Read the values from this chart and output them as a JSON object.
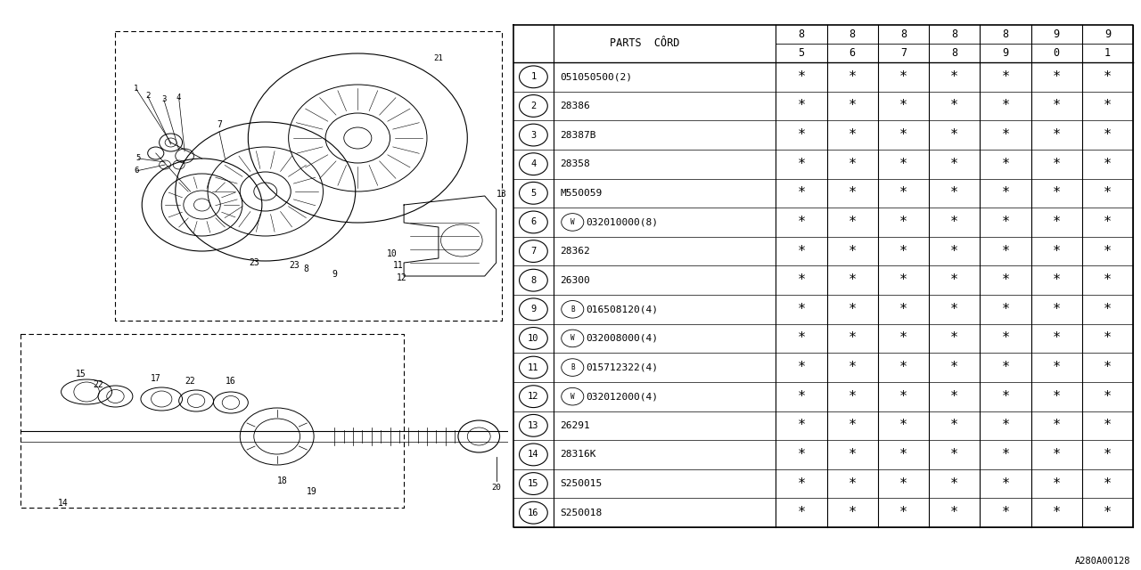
{
  "bg_color": "#ffffff",
  "line_color": "#000000",
  "text_color": "#000000",
  "footer_code": "A280A00128",
  "font_size_table": 8,
  "font_size_header": 8.5,
  "font_size_footer": 7.5,
  "year_headers": [
    [
      "8",
      "5"
    ],
    [
      "8",
      "6"
    ],
    [
      "8",
      "7"
    ],
    [
      "8",
      "8"
    ],
    [
      "8",
      "9"
    ],
    [
      "9",
      "0"
    ],
    [
      "9",
      "1"
    ]
  ],
  "parts_cord_label": "PARTS  CÔRD",
  "rows": [
    [
      "1",
      "051050500(2)",
      false,
      ""
    ],
    [
      "2",
      "28386",
      false,
      ""
    ],
    [
      "3",
      "28387B",
      false,
      ""
    ],
    [
      "4",
      "28358",
      false,
      ""
    ],
    [
      "5",
      "M550059",
      false,
      ""
    ],
    [
      "6",
      "032010000(8)",
      "W",
      ""
    ],
    [
      "7",
      "28362",
      false,
      ""
    ],
    [
      "8",
      "26300",
      false,
      ""
    ],
    [
      "9",
      "016508120(4)",
      "B",
      ""
    ],
    [
      "10",
      "032008000(4)",
      "W",
      ""
    ],
    [
      "11",
      "015712322(4)",
      "B",
      ""
    ],
    [
      "12",
      "032012000(4)",
      "W",
      ""
    ],
    [
      "13",
      "26291",
      false,
      ""
    ],
    [
      "14",
      "28316K",
      false,
      ""
    ],
    [
      "15",
      "S250015",
      false,
      ""
    ],
    [
      "16",
      "S250018",
      false,
      ""
    ]
  ]
}
